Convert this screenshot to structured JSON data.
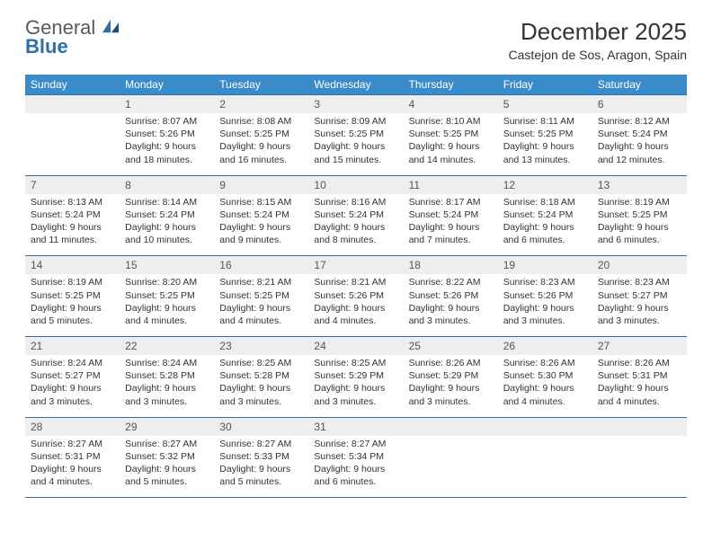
{
  "logo": {
    "line1": "General",
    "line2": "Blue"
  },
  "title": "December 2025",
  "location": "Castejon de Sos, Aragon, Spain",
  "colors": {
    "header_bg": "#3a8bc9",
    "header_text": "#ffffff",
    "row_rule": "#2f6fa8",
    "num_bg": "#eeeeee",
    "body_text": "#333333",
    "logo_gray": "#5a5a5a",
    "logo_blue": "#2f6fa8"
  },
  "fonts": {
    "title_size_pt": 20,
    "location_size_pt": 11,
    "dayheader_size_pt": 9,
    "daynum_size_pt": 9,
    "cell_size_pt": 8
  },
  "day_names": [
    "Sunday",
    "Monday",
    "Tuesday",
    "Wednesday",
    "Thursday",
    "Friday",
    "Saturday"
  ],
  "weeks": [
    {
      "nums": [
        "",
        "1",
        "2",
        "3",
        "4",
        "5",
        "6"
      ],
      "cells": [
        "",
        "Sunrise: 8:07 AM\nSunset: 5:26 PM\nDaylight: 9 hours and 18 minutes.",
        "Sunrise: 8:08 AM\nSunset: 5:25 PM\nDaylight: 9 hours and 16 minutes.",
        "Sunrise: 8:09 AM\nSunset: 5:25 PM\nDaylight: 9 hours and 15 minutes.",
        "Sunrise: 8:10 AM\nSunset: 5:25 PM\nDaylight: 9 hours and 14 minutes.",
        "Sunrise: 8:11 AM\nSunset: 5:25 PM\nDaylight: 9 hours and 13 minutes.",
        "Sunrise: 8:12 AM\nSunset: 5:24 PM\nDaylight: 9 hours and 12 minutes."
      ]
    },
    {
      "nums": [
        "7",
        "8",
        "9",
        "10",
        "11",
        "12",
        "13"
      ],
      "cells": [
        "Sunrise: 8:13 AM\nSunset: 5:24 PM\nDaylight: 9 hours and 11 minutes.",
        "Sunrise: 8:14 AM\nSunset: 5:24 PM\nDaylight: 9 hours and 10 minutes.",
        "Sunrise: 8:15 AM\nSunset: 5:24 PM\nDaylight: 9 hours and 9 minutes.",
        "Sunrise: 8:16 AM\nSunset: 5:24 PM\nDaylight: 9 hours and 8 minutes.",
        "Sunrise: 8:17 AM\nSunset: 5:24 PM\nDaylight: 9 hours and 7 minutes.",
        "Sunrise: 8:18 AM\nSunset: 5:24 PM\nDaylight: 9 hours and 6 minutes.",
        "Sunrise: 8:19 AM\nSunset: 5:25 PM\nDaylight: 9 hours and 6 minutes."
      ]
    },
    {
      "nums": [
        "14",
        "15",
        "16",
        "17",
        "18",
        "19",
        "20"
      ],
      "cells": [
        "Sunrise: 8:19 AM\nSunset: 5:25 PM\nDaylight: 9 hours and 5 minutes.",
        "Sunrise: 8:20 AM\nSunset: 5:25 PM\nDaylight: 9 hours and 4 minutes.",
        "Sunrise: 8:21 AM\nSunset: 5:25 PM\nDaylight: 9 hours and 4 minutes.",
        "Sunrise: 8:21 AM\nSunset: 5:26 PM\nDaylight: 9 hours and 4 minutes.",
        "Sunrise: 8:22 AM\nSunset: 5:26 PM\nDaylight: 9 hours and 3 minutes.",
        "Sunrise: 8:23 AM\nSunset: 5:26 PM\nDaylight: 9 hours and 3 minutes.",
        "Sunrise: 8:23 AM\nSunset: 5:27 PM\nDaylight: 9 hours and 3 minutes."
      ]
    },
    {
      "nums": [
        "21",
        "22",
        "23",
        "24",
        "25",
        "26",
        "27"
      ],
      "cells": [
        "Sunrise: 8:24 AM\nSunset: 5:27 PM\nDaylight: 9 hours and 3 minutes.",
        "Sunrise: 8:24 AM\nSunset: 5:28 PM\nDaylight: 9 hours and 3 minutes.",
        "Sunrise: 8:25 AM\nSunset: 5:28 PM\nDaylight: 9 hours and 3 minutes.",
        "Sunrise: 8:25 AM\nSunset: 5:29 PM\nDaylight: 9 hours and 3 minutes.",
        "Sunrise: 8:26 AM\nSunset: 5:29 PM\nDaylight: 9 hours and 3 minutes.",
        "Sunrise: 8:26 AM\nSunset: 5:30 PM\nDaylight: 9 hours and 4 minutes.",
        "Sunrise: 8:26 AM\nSunset: 5:31 PM\nDaylight: 9 hours and 4 minutes."
      ]
    },
    {
      "nums": [
        "28",
        "29",
        "30",
        "31",
        "",
        "",
        ""
      ],
      "cells": [
        "Sunrise: 8:27 AM\nSunset: 5:31 PM\nDaylight: 9 hours and 4 minutes.",
        "Sunrise: 8:27 AM\nSunset: 5:32 PM\nDaylight: 9 hours and 5 minutes.",
        "Sunrise: 8:27 AM\nSunset: 5:33 PM\nDaylight: 9 hours and 5 minutes.",
        "Sunrise: 8:27 AM\nSunset: 5:34 PM\nDaylight: 9 hours and 6 minutes.",
        "",
        "",
        ""
      ]
    }
  ]
}
